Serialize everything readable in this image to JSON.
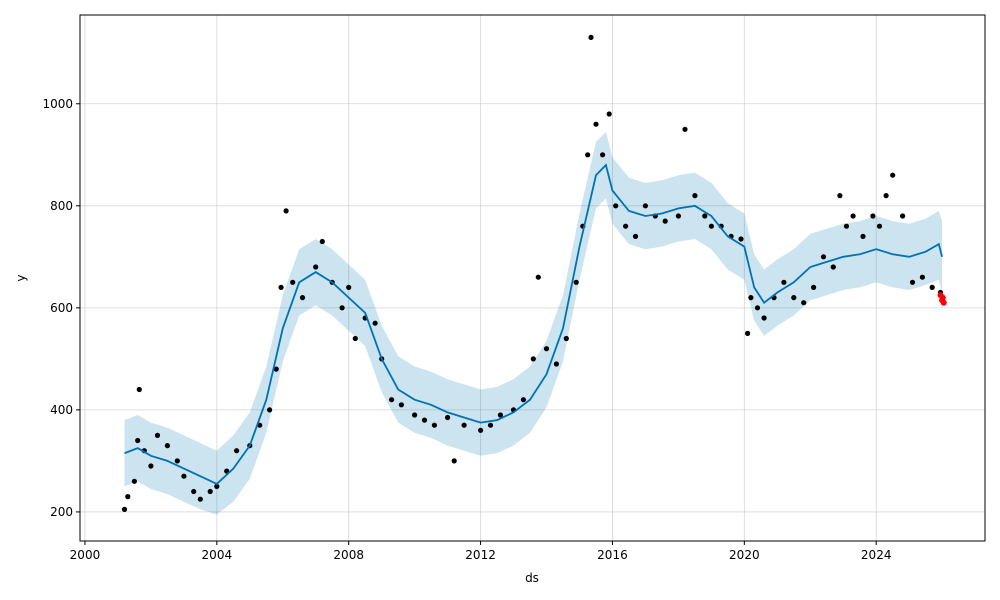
{
  "chart_data": {
    "type": "line",
    "title": "",
    "xlabel": "ds",
    "ylabel": "y",
    "xlim": [
      1999.85,
      2027.3
    ],
    "ylim": [
      143,
      1174
    ],
    "x_ticks": [
      {
        "value": 2000,
        "label": "2000"
      },
      {
        "value": 2004,
        "label": "2004"
      },
      {
        "value": 2008,
        "label": "2008"
      },
      {
        "value": 2012,
        "label": "2012"
      },
      {
        "value": 2016,
        "label": "2016"
      },
      {
        "value": 2020,
        "label": "2020"
      },
      {
        "value": 2024,
        "label": "2024"
      }
    ],
    "y_ticks": [
      {
        "value": 200,
        "label": "200"
      },
      {
        "value": 400,
        "label": "400"
      },
      {
        "value": 600,
        "label": "600"
      },
      {
        "value": 800,
        "label": "800"
      },
      {
        "value": 1000,
        "label": "1000"
      }
    ],
    "grid": true,
    "colors": {
      "observed": "#000000",
      "forecast_line": "#0072b2",
      "interval_band": "#0072b2",
      "future_points": "#ff0000"
    },
    "forecast": {
      "x": [
        2001.2,
        2001.6,
        2002.0,
        2002.5,
        2003.0,
        2003.5,
        2004.0,
        2004.5,
        2005.0,
        2005.5,
        2006.0,
        2006.5,
        2007.0,
        2007.5,
        2008.0,
        2008.5,
        2009.0,
        2009.5,
        2010.0,
        2010.5,
        2011.0,
        2011.5,
        2012.0,
        2012.5,
        2013.0,
        2013.5,
        2014.0,
        2014.5,
        2015.0,
        2015.5,
        2015.8,
        2016.0,
        2016.5,
        2017.0,
        2017.5,
        2018.0,
        2018.5,
        2019.0,
        2019.5,
        2020.0,
        2020.3,
        2020.6,
        2021.0,
        2021.5,
        2022.0,
        2022.5,
        2023.0,
        2023.5,
        2024.0,
        2024.5,
        2025.0,
        2025.5,
        2025.9,
        2026.0
      ],
      "y": [
        315,
        325,
        310,
        300,
        285,
        270,
        255,
        285,
        330,
        420,
        560,
        650,
        670,
        650,
        620,
        590,
        500,
        440,
        420,
        410,
        395,
        385,
        375,
        380,
        395,
        420,
        470,
        560,
        720,
        860,
        880,
        830,
        790,
        780,
        785,
        795,
        800,
        780,
        740,
        720,
        640,
        610,
        630,
        650,
        680,
        690,
        700,
        705,
        715,
        705,
        700,
        710,
        725,
        700
      ],
      "lower": [
        250,
        260,
        245,
        235,
        220,
        205,
        195,
        220,
        265,
        355,
        495,
        585,
        605,
        585,
        555,
        525,
        435,
        375,
        355,
        345,
        330,
        320,
        310,
        315,
        330,
        355,
        405,
        495,
        655,
        795,
        815,
        765,
        725,
        715,
        720,
        730,
        735,
        715,
        675,
        655,
        575,
        545,
        565,
        585,
        615,
        625,
        635,
        640,
        650,
        640,
        635,
        645,
        655,
        630
      ],
      "upper": [
        380,
        390,
        375,
        365,
        350,
        335,
        320,
        350,
        395,
        485,
        625,
        715,
        735,
        715,
        685,
        655,
        565,
        505,
        485,
        475,
        460,
        450,
        440,
        445,
        460,
        485,
        535,
        625,
        785,
        925,
        945,
        895,
        855,
        845,
        850,
        860,
        865,
        845,
        805,
        785,
        705,
        675,
        695,
        715,
        745,
        755,
        765,
        770,
        780,
        770,
        765,
        775,
        790,
        770
      ]
    },
    "observed": {
      "x": [
        2001.2,
        2001.3,
        2001.5,
        2001.6,
        2001.65,
        2001.8,
        2002.0,
        2002.2,
        2002.5,
        2002.8,
        2003.0,
        2003.3,
        2003.5,
        2003.8,
        2004.0,
        2004.3,
        2004.6,
        2005.0,
        2005.3,
        2005.6,
        2005.8,
        2005.95,
        2006.1,
        2006.3,
        2006.6,
        2007.0,
        2007.2,
        2007.5,
        2007.8,
        2008.0,
        2008.2,
        2008.5,
        2008.8,
        2009.0,
        2009.3,
        2009.6,
        2010.0,
        2010.3,
        2010.6,
        2011.0,
        2011.2,
        2011.5,
        2012.0,
        2012.3,
        2012.6,
        2013.0,
        2013.3,
        2013.6,
        2013.75,
        2014.0,
        2014.3,
        2014.6,
        2014.9,
        2015.1,
        2015.25,
        2015.35,
        2015.5,
        2015.7,
        2015.9,
        2016.1,
        2016.4,
        2016.7,
        2017.0,
        2017.3,
        2017.6,
        2018.0,
        2018.2,
        2018.5,
        2018.8,
        2019.0,
        2019.3,
        2019.6,
        2019.9,
        2020.1,
        2020.2,
        2020.4,
        2020.6,
        2020.9,
        2021.2,
        2021.5,
        2021.8,
        2022.1,
        2022.4,
        2022.7,
        2022.9,
        2023.1,
        2023.3,
        2023.6,
        2023.9,
        2024.1,
        2024.3,
        2024.5,
        2024.8,
        2025.1,
        2025.4,
        2025.7,
        2025.95
      ],
      "y": [
        205,
        230,
        260,
        340,
        440,
        320,
        290,
        350,
        330,
        300,
        270,
        240,
        225,
        240,
        250,
        280,
        320,
        330,
        370,
        400,
        480,
        640,
        790,
        650,
        620,
        680,
        730,
        650,
        600,
        640,
        540,
        580,
        570,
        500,
        420,
        410,
        390,
        380,
        370,
        385,
        300,
        370,
        360,
        370,
        390,
        400,
        420,
        500,
        660,
        520,
        490,
        540,
        650,
        760,
        900,
        1130,
        960,
        900,
        980,
        800,
        760,
        740,
        800,
        780,
        770,
        780,
        950,
        820,
        780,
        760,
        760,
        740,
        735,
        550,
        620,
        600,
        580,
        620,
        650,
        620,
        610,
        640,
        700,
        680,
        820,
        760,
        780,
        740,
        780,
        760,
        820,
        860,
        780,
        650,
        660,
        640,
        630
      ]
    },
    "future_points": {
      "x": [
        2025.95,
        2026.0,
        2026.02,
        2026.05
      ],
      "y": [
        625,
        615,
        620,
        610
      ]
    }
  }
}
